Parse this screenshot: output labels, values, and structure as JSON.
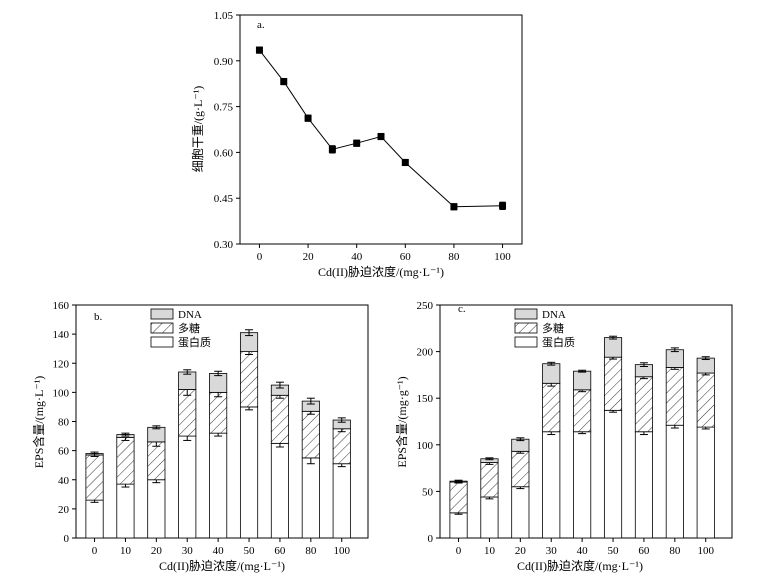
{
  "chart_data": [
    {
      "type": "line",
      "panel_label": "a.",
      "xlabel": "Cd(II)胁迫浓度/(mg·L⁻¹)",
      "ylabel": "细胞干重/(g·L⁻¹)",
      "xlim": [
        -8,
        108
      ],
      "ylim": [
        0.3,
        1.05
      ],
      "x_ticks": [
        "0",
        "20",
        "40",
        "60",
        "80",
        "100"
      ],
      "y_ticks": [
        "0.30",
        "0.45",
        "0.60",
        "0.75",
        "0.90",
        "1.05"
      ],
      "x": [
        0,
        10,
        20,
        30,
        40,
        50,
        60,
        80,
        100
      ],
      "y": [
        0.935,
        0.832,
        0.712,
        0.61,
        0.63,
        0.652,
        0.567,
        0.422,
        0.425
      ],
      "error": [
        0.01,
        0.01,
        0.01,
        0.012,
        0.01,
        0.01,
        0.01,
        0.01,
        0.012
      ]
    },
    {
      "type": "bar",
      "stacked": true,
      "panel_label": "b.",
      "xlabel": "Cd(II)胁迫浓度/(mg·L⁻¹)",
      "ylabel": "EPS含量/(mg·L⁻¹)",
      "ylim": [
        0,
        160
      ],
      "y_ticks": [
        "0",
        "20",
        "40",
        "60",
        "80",
        "100",
        "120",
        "140",
        "160"
      ],
      "categories": [
        "0",
        "10",
        "20",
        "30",
        "40",
        "50",
        "60",
        "80",
        "100"
      ],
      "legend_position": "top-center",
      "series": [
        {
          "name": "蛋白质",
          "values": [
            26,
            37,
            40,
            70,
            72,
            90,
            65,
            55,
            51
          ],
          "error": [
            1.5,
            2,
            2,
            3,
            2,
            2,
            2.5,
            4,
            2
          ]
        },
        {
          "name": "多糖",
          "values": [
            31,
            32,
            26,
            32,
            28,
            38,
            33,
            32,
            24
          ],
          "error": [
            1,
            2,
            3,
            4,
            3,
            2,
            2,
            2,
            2
          ]
        },
        {
          "name": "DNA",
          "values": [
            1,
            2,
            10,
            12,
            13,
            13,
            7,
            7,
            6
          ],
          "error": [
            1,
            1,
            1,
            1.5,
            1.5,
            2,
            2,
            2,
            1.5
          ]
        }
      ],
      "colors": {
        "DNA": "#d9d9d9",
        "多糖": "hatch",
        "蛋白质": "#ffffff"
      }
    },
    {
      "type": "bar",
      "stacked": true,
      "panel_label": "c.",
      "xlabel": "Cd(II)胁迫浓度/(mg·L⁻¹)",
      "ylabel": "EPS含量/(mg·g⁻¹)",
      "ylim": [
        0,
        250
      ],
      "y_ticks": [
        "0",
        "50",
        "100",
        "150",
        "200",
        "250"
      ],
      "categories": [
        "0",
        "10",
        "20",
        "30",
        "40",
        "50",
        "60",
        "80",
        "100"
      ],
      "legend_position": "top-center",
      "series": [
        {
          "name": "蛋白质",
          "values": [
            27,
            44,
            55,
            114,
            114,
            137,
            114,
            121,
            119
          ],
          "error": [
            1.5,
            2,
            2,
            3,
            2,
            2,
            3,
            3,
            2
          ]
        },
        {
          "name": "多糖",
          "values": [
            33,
            37,
            38,
            52,
            45,
            57,
            59,
            62,
            58
          ],
          "error": [
            1,
            2,
            2,
            3,
            2,
            2,
            2,
            2,
            2
          ]
        },
        {
          "name": "DNA",
          "values": [
            1,
            4,
            13,
            21,
            20,
            21,
            13,
            19,
            16
          ],
          "error": [
            1,
            1,
            1.5,
            1.5,
            1,
            1.5,
            2,
            2,
            1.5
          ]
        }
      ],
      "colors": {
        "DNA": "#d9d9d9",
        "多糖": "hatch",
        "蛋白质": "#ffffff"
      }
    }
  ]
}
